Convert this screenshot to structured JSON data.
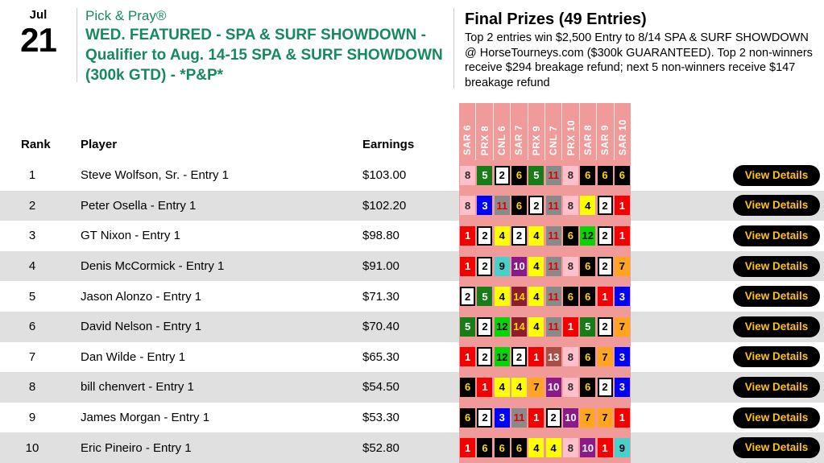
{
  "event": {
    "month": "Jul",
    "day": "21",
    "kicker": "Pick & Pray®",
    "title": "WED. FEATURED - SPA & SURF SHOWDOWN - Qualifier to Aug. 14-15 SPA & SURF SHOWDOWN (300k GTD) - *P&P*"
  },
  "prizes": {
    "heading": "Final Prizes (49 Entries)",
    "description": "Top 2 entries win $2,500 Entry to 8/14 SPA & SURF SHOWDOWN @ HorseTourneys.com ($300k GUARANTEED). Top 2 non-winners receive $294 breakage refund; next 5 non-winners receive $147 breakage refund"
  },
  "table": {
    "column_headers": {
      "rank": "Rank",
      "player": "Player",
      "earnings": "Earnings"
    },
    "races": [
      "SAR 6",
      "PRX 8",
      "CNL 6",
      "SAR 7",
      "PRX 9",
      "CNL 7",
      "PRX 10",
      "SAR 8",
      "SAR 9",
      "SAR 10"
    ],
    "view_details_label": "View Details",
    "rows": [
      {
        "rank": "1",
        "player": "Steve Wolfson, Sr. - Entry 1",
        "earnings": "$103.00",
        "picks": [
          8,
          5,
          2,
          6,
          5,
          11,
          8,
          6,
          6,
          6
        ]
      },
      {
        "rank": "2",
        "player": "Peter Osella - Entry 1",
        "earnings": "$102.20",
        "picks": [
          8,
          3,
          11,
          6,
          2,
          11,
          8,
          4,
          2,
          1
        ]
      },
      {
        "rank": "3",
        "player": "GT Nixon - Entry 1",
        "earnings": "$98.80",
        "picks": [
          1,
          2,
          4,
          2,
          4,
          11,
          6,
          12,
          2,
          1
        ]
      },
      {
        "rank": "4",
        "player": "Denis McCormick - Entry 1",
        "earnings": "$91.00",
        "picks": [
          1,
          2,
          9,
          10,
          4,
          11,
          8,
          6,
          2,
          7
        ]
      },
      {
        "rank": "5",
        "player": "Jason Alonzo - Entry 1",
        "earnings": "$71.30",
        "picks": [
          2,
          5,
          4,
          14,
          4,
          11,
          6,
          6,
          1,
          3
        ]
      },
      {
        "rank": "6",
        "player": "David Nelson - Entry 1",
        "earnings": "$70.40",
        "picks": [
          5,
          2,
          12,
          14,
          4,
          11,
          1,
          5,
          2,
          7
        ]
      },
      {
        "rank": "7",
        "player": "Dan Wilde - Entry 1",
        "earnings": "$65.30",
        "picks": [
          1,
          2,
          12,
          2,
          1,
          13,
          8,
          6,
          7,
          3
        ]
      },
      {
        "rank": "8",
        "player": "bill chenvert - Entry 1",
        "earnings": "$54.50",
        "picks": [
          6,
          1,
          4,
          4,
          7,
          10,
          8,
          6,
          2,
          3
        ]
      },
      {
        "rank": "9",
        "player": "James Morgan - Entry 1",
        "earnings": "$53.30",
        "picks": [
          6,
          2,
          3,
          11,
          1,
          2,
          10,
          7,
          7,
          1
        ]
      },
      {
        "rank": "10",
        "player": "Eric Pineiro - Entry 1",
        "earnings": "$52.80",
        "picks": [
          1,
          6,
          6,
          6,
          4,
          4,
          8,
          10,
          1,
          9
        ]
      }
    ]
  },
  "colors": {
    "title_green": "#17895e",
    "race_strip_pink": "#f19a9a",
    "row_alt_gray": "#e0e0e0",
    "button_bg": "#000000",
    "button_text": "#ffc20e",
    "saddle_cloths": {
      "1": {
        "bg": "#f40000",
        "fg": "#ffffff",
        "border": false
      },
      "2": {
        "bg": "#ffffff",
        "fg": "#000000",
        "border": true
      },
      "3": {
        "bg": "#0000ff",
        "fg": "#ffffff",
        "border": false
      },
      "4": {
        "bg": "#ffff00",
        "fg": "#000000",
        "border": false
      },
      "5": {
        "bg": "#187c19",
        "fg": "#ffffff",
        "border": false
      },
      "6": {
        "bg": "#000000",
        "fg": "#ffd600",
        "border": false
      },
      "7": {
        "bg": "#ffa520",
        "fg": "#000000",
        "border": false
      },
      "8": {
        "bg": "#ffc0cb",
        "fg": "#2a2a2a",
        "border": false
      },
      "9": {
        "bg": "#48d1cc",
        "fg": "#000000",
        "border": false
      },
      "10": {
        "bg": "#8a1a8a",
        "fg": "#ffffff",
        "border": false
      },
      "11": {
        "bg": "#8a8a8a",
        "fg": "#e10000",
        "border": false
      },
      "12": {
        "bg": "#05d505",
        "fg": "#000000",
        "border": false
      },
      "13": {
        "bg": "#a94f46",
        "fg": "#ffffff",
        "border": false
      },
      "14": {
        "bg": "#8b1e2d",
        "fg": "#ffd600",
        "border": false
      }
    }
  }
}
